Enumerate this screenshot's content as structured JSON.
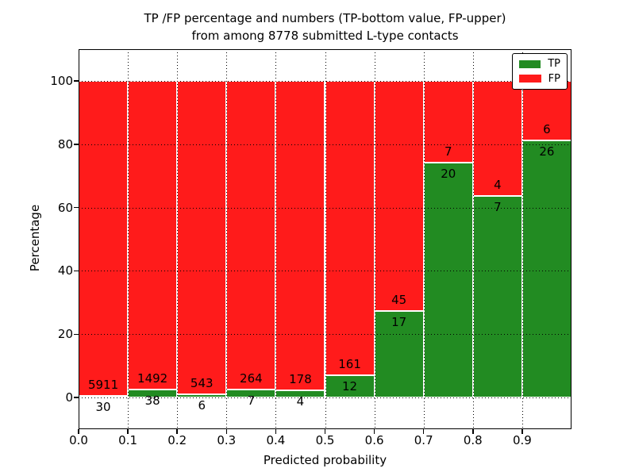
{
  "chart_data": {
    "type": "bar",
    "stacked": true,
    "normalized_to_percent": true,
    "title_lines": [
      "TP /FP percentage and numbers (TP-bottom value, FP-upper)",
      "from among 8778 submitted L-type contacts"
    ],
    "xlabel": "Predicted probability",
    "ylabel": "Percentage",
    "total_contacts": 8778,
    "bin_width": 0.1,
    "bin_starts": [
      0.0,
      0.1,
      0.2,
      0.3,
      0.4,
      0.5,
      0.6,
      0.7,
      0.8,
      0.9
    ],
    "x_tick_labels": [
      "0.0",
      "0.1",
      "0.2",
      "0.3",
      "0.4",
      "0.5",
      "0.6",
      "0.7",
      "0.8",
      "0.9"
    ],
    "y_ticks": [
      0,
      20,
      40,
      60,
      80,
      100
    ],
    "y_tick_labels": [
      "0",
      "20",
      "40",
      "60",
      "80",
      "100"
    ],
    "xlim": [
      0,
      1
    ],
    "ylim": [
      -10,
      110
    ],
    "grid": true,
    "series": [
      {
        "name": "TP",
        "color": "#228b22",
        "counts": [
          30,
          38,
          6,
          7,
          4,
          12,
          17,
          20,
          7,
          26
        ]
      },
      {
        "name": "FP",
        "color": "#ff1b1b",
        "counts": [
          5911,
          1492,
          543,
          264,
          178,
          161,
          45,
          7,
          4,
          6
        ]
      }
    ],
    "tp_percent_heights": [
      0.5,
      2.5,
      1.1,
      2.6,
      2.2,
      6.9,
      27.4,
      74.1,
      63.6,
      81.3
    ],
    "bar_edge_color": "#ffffff",
    "legend": {
      "position": "upper right",
      "entries": [
        "TP",
        "FP"
      ]
    }
  }
}
